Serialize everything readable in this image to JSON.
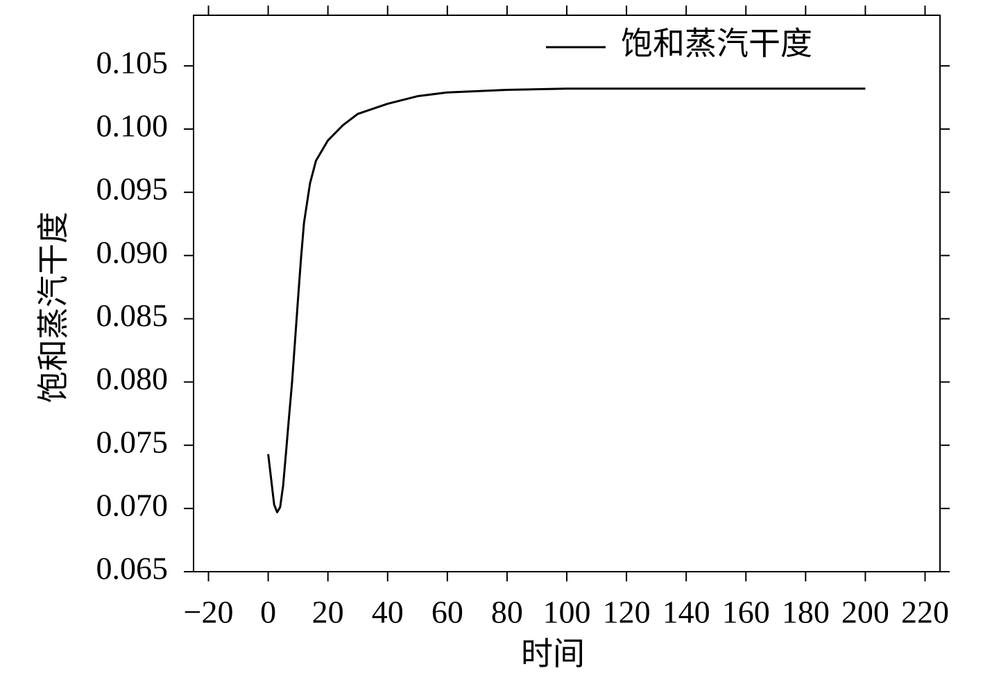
{
  "chart_data": {
    "type": "line",
    "xlabel": "时间",
    "ylabel": "饱和蒸汽干度",
    "x": [
      0,
      1,
      2,
      3,
      4,
      5,
      6,
      7,
      8,
      9,
      10,
      11,
      12,
      14,
      16,
      20,
      25,
      30,
      40,
      50,
      60,
      80,
      100,
      150,
      200
    ],
    "series": [
      {
        "name": "饱和蒸汽干度",
        "color": "#000000",
        "values": [
          0.0743,
          0.0723,
          0.0703,
          0.0697,
          0.0701,
          0.0718,
          0.0745,
          0.0773,
          0.08,
          0.0833,
          0.0866,
          0.0898,
          0.0926,
          0.0957,
          0.0975,
          0.0991,
          0.1003,
          0.1012,
          0.102,
          0.1026,
          0.1029,
          0.1031,
          0.1032,
          0.1032,
          0.1032
        ]
      }
    ],
    "xlim": [
      -25,
      225
    ],
    "xticks": [
      {
        "value": -20,
        "label": "−20"
      },
      0,
      20,
      40,
      60,
      80,
      100,
      120,
      140,
      160,
      180,
      200,
      220
    ],
    "ylim": [
      0.065,
      0.109
    ],
    "yticks": [
      0.065,
      {
        "value": 0.07,
        "label": "0.070"
      },
      0.075,
      {
        "value": 0.08,
        "label": "0.080"
      },
      0.085,
      {
        "value": 0.09,
        "label": "0.090"
      },
      0.095,
      {
        "value": 0.1,
        "label": "0.100"
      },
      0.105
    ],
    "legend": "upper right",
    "grid": false
  }
}
